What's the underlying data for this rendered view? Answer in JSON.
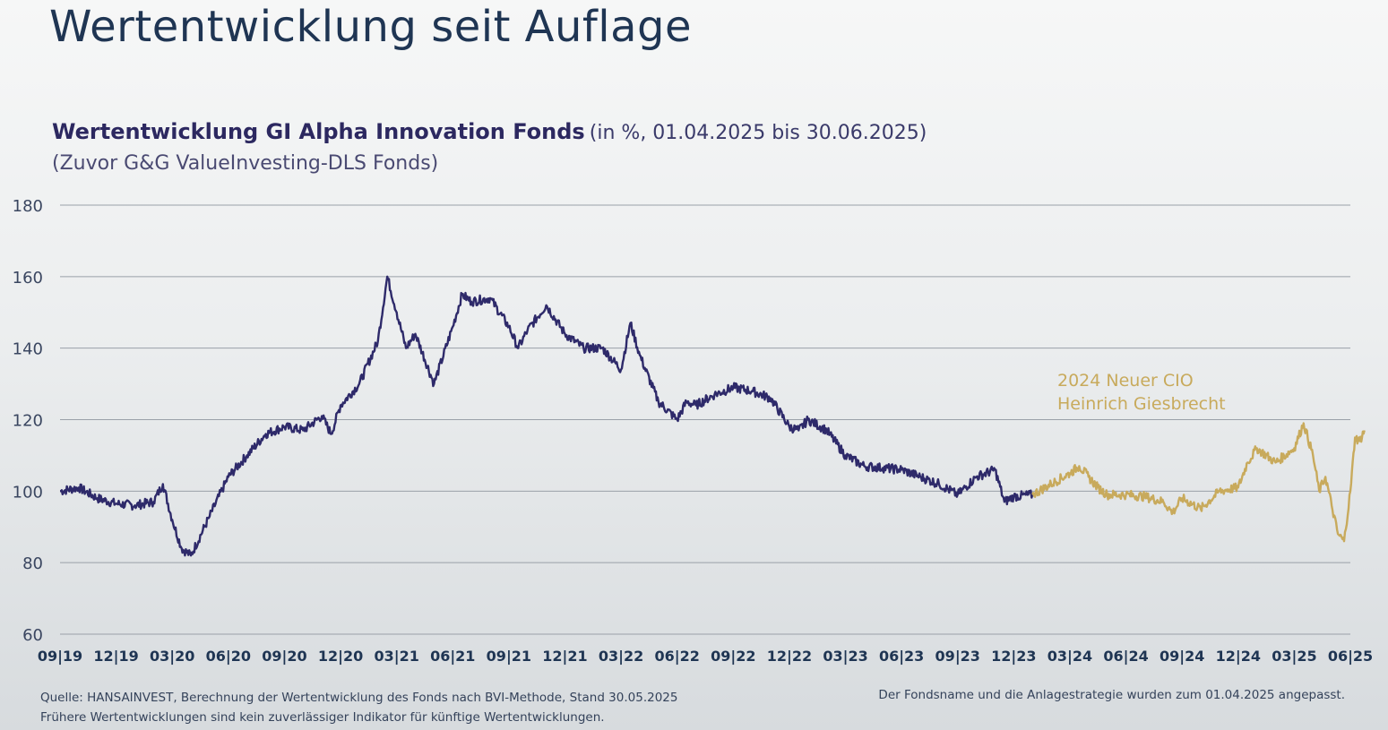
{
  "page": {
    "title": "Wertentwicklung seit Auflage"
  },
  "chart_data": {
    "type": "line",
    "title": "Wertentwicklung GI Alpha Innovation Fonds",
    "title_suffix": "(in %, 01.04.2025 bis 30.06.2025)",
    "subtitle": "(Zuvor G&G ValueInvesting-DLS Fonds)",
    "ylim": [
      60,
      180
    ],
    "yticks": [
      60,
      80,
      100,
      120,
      140,
      160,
      180
    ],
    "grid": true,
    "xtick_labels": [
      "09|19",
      "12|19",
      "03|20",
      "06|20",
      "09|20",
      "12|20",
      "03|21",
      "06|21",
      "09|21",
      "12|21",
      "03|22",
      "06|22",
      "09|22",
      "12|22",
      "03|23",
      "06|23",
      "09|23",
      "12|23",
      "03|24",
      "06|24",
      "09|24",
      "12|24",
      "03|25",
      "06|25"
    ],
    "annotation": {
      "line1": "2024 Neuer CIO",
      "line2": "Heinrich Giesbrecht"
    },
    "colors": {
      "before": "#2e2a6a",
      "after": "#c8aa5c"
    },
    "series": [
      {
        "segment": "before",
        "points": [
          [
            "09|19",
            100
          ],
          [
            "10|19",
            101
          ],
          [
            "11|19",
            98
          ],
          [
            "12|19",
            96.5
          ],
          [
            "01|20",
            96
          ],
          [
            "02|20",
            97
          ],
          [
            "02|20",
            102
          ],
          [
            "03|20",
            92
          ],
          [
            "03|20",
            84
          ],
          [
            "04|20",
            82
          ],
          [
            "05|20",
            93
          ],
          [
            "06|20",
            104
          ],
          [
            "07|20",
            110
          ],
          [
            "08|20",
            116
          ],
          [
            "09|20",
            118
          ],
          [
            "10|20",
            117
          ],
          [
            "11|20",
            121
          ],
          [
            "11|20",
            116
          ],
          [
            "12|20",
            124
          ],
          [
            "01|21",
            130
          ],
          [
            "02|21",
            142
          ],
          [
            "02|21",
            160
          ],
          [
            "03|21",
            150
          ],
          [
            "03|21",
            140
          ],
          [
            "04|21",
            144
          ],
          [
            "05|21",
            130
          ],
          [
            "06|21",
            146
          ],
          [
            "06|21",
            155
          ],
          [
            "07|21",
            153
          ],
          [
            "08|21",
            154
          ],
          [
            "09|21",
            146
          ],
          [
            "09|21",
            140
          ],
          [
            "10|21",
            145
          ],
          [
            "11|21",
            152
          ],
          [
            "12|21",
            144
          ],
          [
            "01|22",
            140
          ],
          [
            "02|22",
            140
          ],
          [
            "03|22",
            134
          ],
          [
            "03|22",
            147
          ],
          [
            "04|22",
            138
          ],
          [
            "05|22",
            125
          ],
          [
            "06|22",
            120
          ],
          [
            "06|22",
            125
          ],
          [
            "07|22",
            124
          ],
          [
            "08|22",
            127
          ],
          [
            "09|22",
            129
          ],
          [
            "10|22",
            128
          ],
          [
            "11|22",
            126
          ],
          [
            "12|22",
            118
          ],
          [
            "12|22",
            117
          ],
          [
            "01|23",
            120
          ],
          [
            "02|23",
            117
          ],
          [
            "03|23",
            110
          ],
          [
            "04|23",
            107
          ],
          [
            "05|23",
            106.5
          ],
          [
            "06|23",
            106
          ],
          [
            "07|23",
            104
          ],
          [
            "08|23",
            102
          ],
          [
            "09|23",
            99
          ],
          [
            "10|23",
            104
          ],
          [
            "11|23",
            106
          ],
          [
            "11|23",
            97
          ],
          [
            "12|23",
            98.5
          ],
          [
            "01|24",
            99
          ]
        ]
      },
      {
        "segment": "after",
        "points": [
          [
            "01|24",
            99
          ],
          [
            "02|24",
            102
          ],
          [
            "03|24",
            105
          ],
          [
            "03|24",
            107
          ],
          [
            "04|24",
            104
          ],
          [
            "04|24",
            101
          ],
          [
            "05|24",
            99
          ],
          [
            "06|24",
            99
          ],
          [
            "07|24",
            98.5
          ],
          [
            "08|24",
            97
          ],
          [
            "08|24",
            94
          ],
          [
            "09|24",
            98
          ],
          [
            "10|24",
            95
          ],
          [
            "11|24",
            100
          ],
          [
            "12|24",
            101
          ],
          [
            "12|24",
            108
          ],
          [
            "01|25",
            112
          ],
          [
            "02|25",
            108
          ],
          [
            "03|25",
            112
          ],
          [
            "03|25",
            119
          ],
          [
            "04|25",
            110
          ],
          [
            "04|25",
            100
          ],
          [
            "04|25",
            104
          ],
          [
            "05|25",
            96
          ],
          [
            "05|25",
            88
          ],
          [
            "05|25",
            86
          ],
          [
            "06|25",
            100
          ],
          [
            "06|25",
            115
          ],
          [
            "06|25",
            114
          ],
          [
            "06|25",
            117
          ]
        ]
      }
    ]
  },
  "footer": {
    "source_line1": "Quelle: HANSAINVEST, Berechnung der Wertentwicklung des Fonds nach BVI-Methode, Stand 30.05.2025",
    "source_line2": "Frühere Wertentwicklungen sind kein zuverlässiger Indikator für künftige Wertentwicklungen.",
    "note": "Der Fondsname und die Anlagestrategie wurden zum 01.04.2025 angepasst."
  }
}
